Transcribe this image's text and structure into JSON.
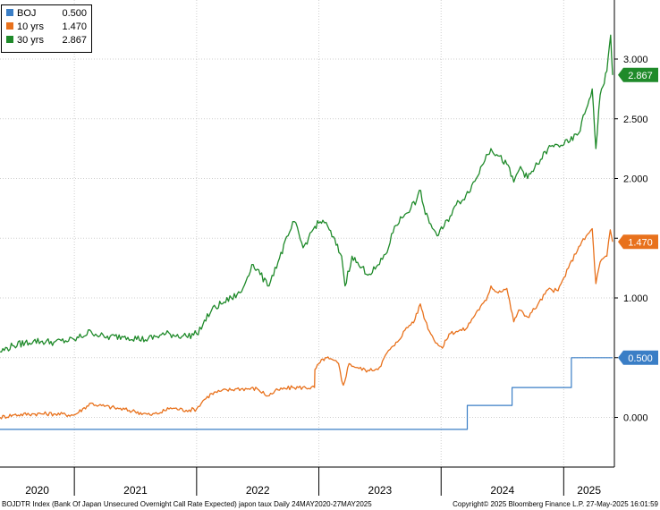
{
  "chart_data": {
    "type": "line",
    "title": "",
    "xlabel": "",
    "ylabel": "",
    "ylim": [
      -0.3,
      3.45
    ],
    "y_ticks": [
      0.0,
      0.5,
      1.0,
      1.5,
      2.0,
      2.5,
      3.0
    ],
    "y_tick_labels": [
      "0.000",
      "0.500",
      "1.000",
      "1.500",
      "2.000",
      "2.500",
      "3.000"
    ],
    "x_range": [
      "2020-05-24",
      "2025-05-27"
    ],
    "year_labels": [
      "2020",
      "2021",
      "2022",
      "2023",
      "2024",
      "2025"
    ],
    "grid": true,
    "legend_position": "top-left",
    "legend": [
      {
        "label": "BOJ",
        "value": "0.500",
        "color": "#3a7ec6"
      },
      {
        "label": "10 yrs",
        "value": "1.470",
        "color": "#e8711c"
      },
      {
        "label": "30 yrs",
        "value": "2.867",
        "color": "#1f8a2a"
      }
    ],
    "last_value_tags": [
      "2.867",
      "1.470",
      "0.500"
    ],
    "series": [
      {
        "name": "BOJ",
        "color": "#3a7ec6",
        "step": true,
        "points": [
          [
            "2020-05-24",
            -0.1
          ],
          [
            "2024-03-19",
            -0.1
          ],
          [
            "2024-03-19",
            0.1
          ],
          [
            "2024-07-31",
            0.1
          ],
          [
            "2024-07-31",
            0.25
          ],
          [
            "2025-01-24",
            0.25
          ],
          [
            "2025-01-24",
            0.5
          ],
          [
            "2025-05-27",
            0.5
          ]
        ]
      },
      {
        "name": "10 yrs",
        "color": "#e8711c",
        "step": false,
        "points": [
          [
            "2020-05-24",
            0.0
          ],
          [
            "2020-07-01",
            0.02
          ],
          [
            "2020-09-01",
            0.03
          ],
          [
            "2020-11-01",
            0.03
          ],
          [
            "2021-01-01",
            0.02
          ],
          [
            "2021-02-20",
            0.12
          ],
          [
            "2021-03-15",
            0.1
          ],
          [
            "2021-05-01",
            0.08
          ],
          [
            "2021-07-01",
            0.05
          ],
          [
            "2021-08-15",
            0.02
          ],
          [
            "2021-09-15",
            0.04
          ],
          [
            "2021-10-15",
            0.08
          ],
          [
            "2021-12-01",
            0.06
          ],
          [
            "2022-01-01",
            0.07
          ],
          [
            "2022-01-20",
            0.14
          ],
          [
            "2022-02-15",
            0.2
          ],
          [
            "2022-03-15",
            0.22
          ],
          [
            "2022-05-01",
            0.24
          ],
          [
            "2022-07-01",
            0.24
          ],
          [
            "2022-08-01",
            0.18
          ],
          [
            "2022-09-01",
            0.23
          ],
          [
            "2022-10-15",
            0.25
          ],
          [
            "2022-12-19",
            0.25
          ],
          [
            "2022-12-20",
            0.4
          ],
          [
            "2023-01-05",
            0.46
          ],
          [
            "2023-01-20",
            0.5
          ],
          [
            "2023-02-01",
            0.49
          ],
          [
            "2023-03-01",
            0.45
          ],
          [
            "2023-03-10",
            0.31
          ],
          [
            "2023-03-15",
            0.27
          ],
          [
            "2023-04-01",
            0.45
          ],
          [
            "2023-05-01",
            0.41
          ],
          [
            "2023-06-01",
            0.39
          ],
          [
            "2023-07-01",
            0.42
          ],
          [
            "2023-07-28",
            0.56
          ],
          [
            "2023-08-15",
            0.6
          ],
          [
            "2023-09-15",
            0.73
          ],
          [
            "2023-10-15",
            0.82
          ],
          [
            "2023-10-31",
            0.95
          ],
          [
            "2023-11-15",
            0.81
          ],
          [
            "2023-12-01",
            0.7
          ],
          [
            "2023-12-20",
            0.62
          ],
          [
            "2024-01-05",
            0.58
          ],
          [
            "2024-01-25",
            0.7
          ],
          [
            "2024-02-15",
            0.72
          ],
          [
            "2024-03-15",
            0.74
          ],
          [
            "2024-04-15",
            0.88
          ],
          [
            "2024-05-15",
            0.98
          ],
          [
            "2024-05-29",
            1.1
          ],
          [
            "2024-06-15",
            1.05
          ],
          [
            "2024-07-15",
            1.08
          ],
          [
            "2024-08-05",
            0.8
          ],
          [
            "2024-08-20",
            0.9
          ],
          [
            "2024-09-15",
            0.84
          ],
          [
            "2024-10-15",
            0.94
          ],
          [
            "2024-11-15",
            1.07
          ],
          [
            "2024-12-15",
            1.06
          ],
          [
            "2025-01-15",
            1.25
          ],
          [
            "2025-02-15",
            1.43
          ],
          [
            "2025-03-27",
            1.58
          ],
          [
            "2025-04-07",
            1.12
          ],
          [
            "2025-04-20",
            1.3
          ],
          [
            "2025-05-10",
            1.35
          ],
          [
            "2025-05-20",
            1.57
          ],
          [
            "2025-05-27",
            1.47
          ]
        ]
      },
      {
        "name": "30 yrs",
        "color": "#1f8a2a",
        "step": false,
        "points": [
          [
            "2020-05-24",
            0.55
          ],
          [
            "2020-07-01",
            0.6
          ],
          [
            "2020-09-01",
            0.64
          ],
          [
            "2020-11-01",
            0.63
          ],
          [
            "2021-01-01",
            0.65
          ],
          [
            "2021-02-20",
            0.72
          ],
          [
            "2021-04-01",
            0.67
          ],
          [
            "2021-06-01",
            0.68
          ],
          [
            "2021-08-01",
            0.65
          ],
          [
            "2021-10-01",
            0.7
          ],
          [
            "2021-12-01",
            0.68
          ],
          [
            "2022-01-01",
            0.7
          ],
          [
            "2022-01-20",
            0.78
          ],
          [
            "2022-02-15",
            0.9
          ],
          [
            "2022-03-15",
            0.95
          ],
          [
            "2022-04-15",
            1.0
          ],
          [
            "2022-05-15",
            1.05
          ],
          [
            "2022-06-15",
            1.28
          ],
          [
            "2022-07-01",
            1.24
          ],
          [
            "2022-08-01",
            1.1
          ],
          [
            "2022-09-01",
            1.3
          ],
          [
            "2022-10-01",
            1.52
          ],
          [
            "2022-10-20",
            1.64
          ],
          [
            "2022-11-15",
            1.42
          ],
          [
            "2022-12-01",
            1.5
          ],
          [
            "2022-12-20",
            1.6
          ],
          [
            "2023-01-13",
            1.65
          ],
          [
            "2023-02-01",
            1.57
          ],
          [
            "2023-03-10",
            1.35
          ],
          [
            "2023-03-20",
            1.1
          ],
          [
            "2023-04-10",
            1.35
          ],
          [
            "2023-05-01",
            1.27
          ],
          [
            "2023-06-01",
            1.2
          ],
          [
            "2023-07-01",
            1.28
          ],
          [
            "2023-07-28",
            1.42
          ],
          [
            "2023-08-15",
            1.6
          ],
          [
            "2023-09-15",
            1.7
          ],
          [
            "2023-10-20",
            1.82
          ],
          [
            "2023-11-01",
            1.9
          ],
          [
            "2023-11-15",
            1.7
          ],
          [
            "2023-12-01",
            1.62
          ],
          [
            "2023-12-20",
            1.52
          ],
          [
            "2024-01-10",
            1.6
          ],
          [
            "2024-02-15",
            1.78
          ],
          [
            "2024-03-15",
            1.86
          ],
          [
            "2024-04-15",
            2.0
          ],
          [
            "2024-05-15",
            2.2
          ],
          [
            "2024-05-29",
            2.25
          ],
          [
            "2024-06-15",
            2.2
          ],
          [
            "2024-07-15",
            2.12
          ],
          [
            "2024-08-05",
            1.97
          ],
          [
            "2024-08-25",
            2.1
          ],
          [
            "2024-09-15",
            2.0
          ],
          [
            "2024-10-15",
            2.12
          ],
          [
            "2024-11-15",
            2.25
          ],
          [
            "2024-12-15",
            2.28
          ],
          [
            "2025-01-15",
            2.3
          ],
          [
            "2025-02-15",
            2.38
          ],
          [
            "2025-03-27",
            2.75
          ],
          [
            "2025-04-07",
            2.25
          ],
          [
            "2025-04-20",
            2.7
          ],
          [
            "2025-05-10",
            2.9
          ],
          [
            "2025-05-21",
            3.2
          ],
          [
            "2025-05-27",
            2.867
          ]
        ]
      }
    ]
  },
  "footer": {
    "left": "BOJDTR Index (Bank Of Japan Unsecured Overnight Call Rate Expected) japon taux  Daily 24MAY2020-27MAY2025",
    "right": "Copyright© 2025 Bloomberg Finance L.P.     27-May-2025 16:01:59"
  }
}
